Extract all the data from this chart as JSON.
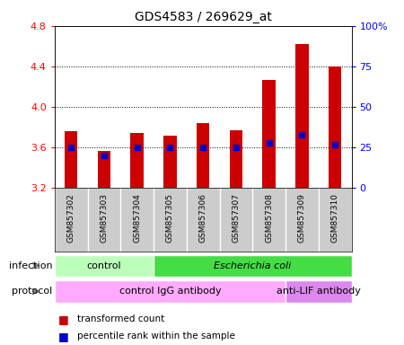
{
  "title": "GDS4583 / 269629_at",
  "samples": [
    "GSM857302",
    "GSM857303",
    "GSM857304",
    "GSM857305",
    "GSM857306",
    "GSM857307",
    "GSM857308",
    "GSM857309",
    "GSM857310"
  ],
  "transformed_count": [
    3.76,
    3.57,
    3.74,
    3.72,
    3.84,
    3.77,
    4.27,
    4.62,
    4.4
  ],
  "percentile_rank": [
    25.0,
    20.0,
    25.0,
    25.0,
    25.0,
    25.0,
    28.0,
    33.0,
    27.0
  ],
  "ylim_left": [
    3.2,
    4.8
  ],
  "yticks_left": [
    3.2,
    3.6,
    4.0,
    4.4,
    4.8
  ],
  "ylim_right": [
    0,
    100
  ],
  "yticks_right": [
    0,
    25,
    50,
    75,
    100
  ],
  "bar_color": "#cc0000",
  "dot_color": "#0000cc",
  "bar_bottom": 3.2,
  "infection_groups": [
    {
      "label": "control",
      "start": 0,
      "end": 3,
      "color": "#bbffbb"
    },
    {
      "label": "Escherichia coli",
      "start": 3,
      "end": 9,
      "color": "#44dd44"
    }
  ],
  "protocol_groups": [
    {
      "label": "control IgG antibody",
      "start": 0,
      "end": 7,
      "color": "#ffaaff"
    },
    {
      "label": "anti-LIF antibody",
      "start": 7,
      "end": 9,
      "color": "#dd88ee"
    }
  ],
  "infection_label": "infection",
  "protocol_label": "protocol",
  "legend_red_label": "transformed count",
  "legend_blue_label": "percentile rank within the sample",
  "sample_bg_color": "#cccccc",
  "background_color": "#ffffff"
}
